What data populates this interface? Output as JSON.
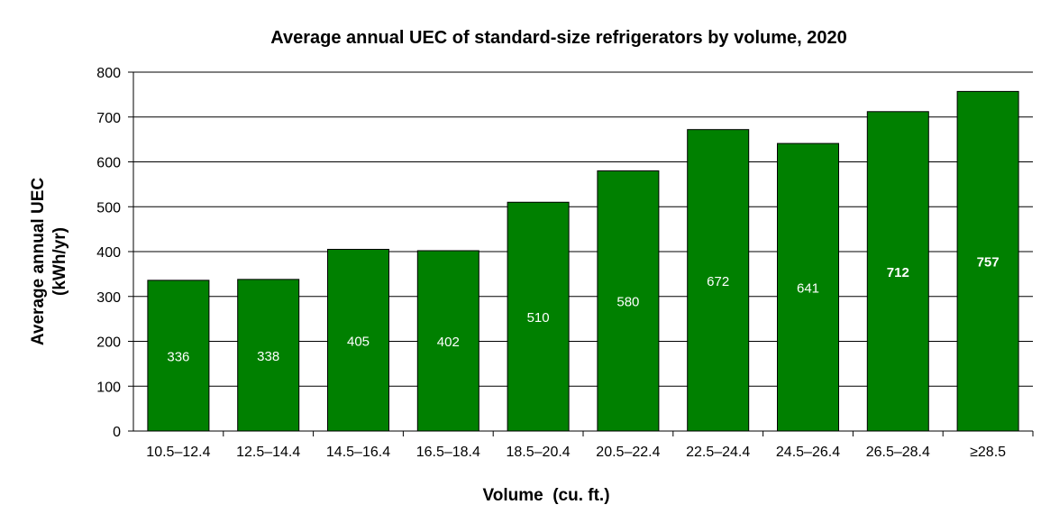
{
  "chart_data": {
    "type": "bar",
    "title": "Average annual UEC of standard-size refrigerators by volume, 2020",
    "xlabel": "Volume  (cu. ft.)",
    "ylabel_line1": "Average annual UEC",
    "ylabel_line2": "(kWh/yr)",
    "categories": [
      "10.5–12.4",
      "12.5–14.4",
      "14.5–16.4",
      "16.5–18.4",
      "18.5–20.4",
      "20.5–22.4",
      "22.5–24.4",
      "24.5–26.4",
      "26.5–28.4",
      "≥28.5"
    ],
    "values": [
      336,
      338,
      405,
      402,
      510,
      580,
      672,
      641,
      712,
      757
    ],
    "data_labels": [
      "336",
      "338",
      "405",
      "402",
      "510",
      "580",
      "672",
      "641",
      "712",
      "757"
    ],
    "bold_labels": [
      false,
      false,
      false,
      false,
      false,
      false,
      false,
      false,
      true,
      true
    ],
    "ylim": [
      0,
      800
    ],
    "yticks": [
      0,
      100,
      200,
      300,
      400,
      500,
      600,
      700,
      800
    ],
    "grid": true,
    "legend": "none",
    "bar_color": "#008000"
  }
}
